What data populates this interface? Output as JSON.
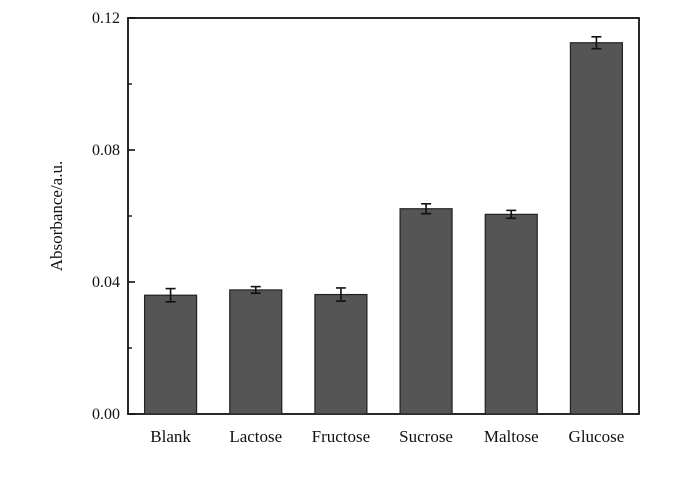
{
  "chart_data": {
    "type": "bar",
    "title": "",
    "xlabel": "",
    "ylabel": "Absorbance/a.u.",
    "categories": [
      "Blank",
      "Lactose",
      "Fructose",
      "Sucrose",
      "Maltose",
      "Glucose"
    ],
    "values": [
      0.036,
      0.0376,
      0.0362,
      0.0622,
      0.0605,
      0.1125
    ],
    "errors": [
      0.002,
      0.001,
      0.002,
      0.0015,
      0.0012,
      0.0018
    ],
    "ylim": [
      0,
      0.12
    ],
    "yticks": [
      "0.00",
      "0.04",
      "0.08",
      "0.12"
    ],
    "ytick_values": [
      0,
      0.04,
      0.08,
      0.12
    ],
    "bar_color": "#555555",
    "grid": false,
    "legend": "none"
  }
}
